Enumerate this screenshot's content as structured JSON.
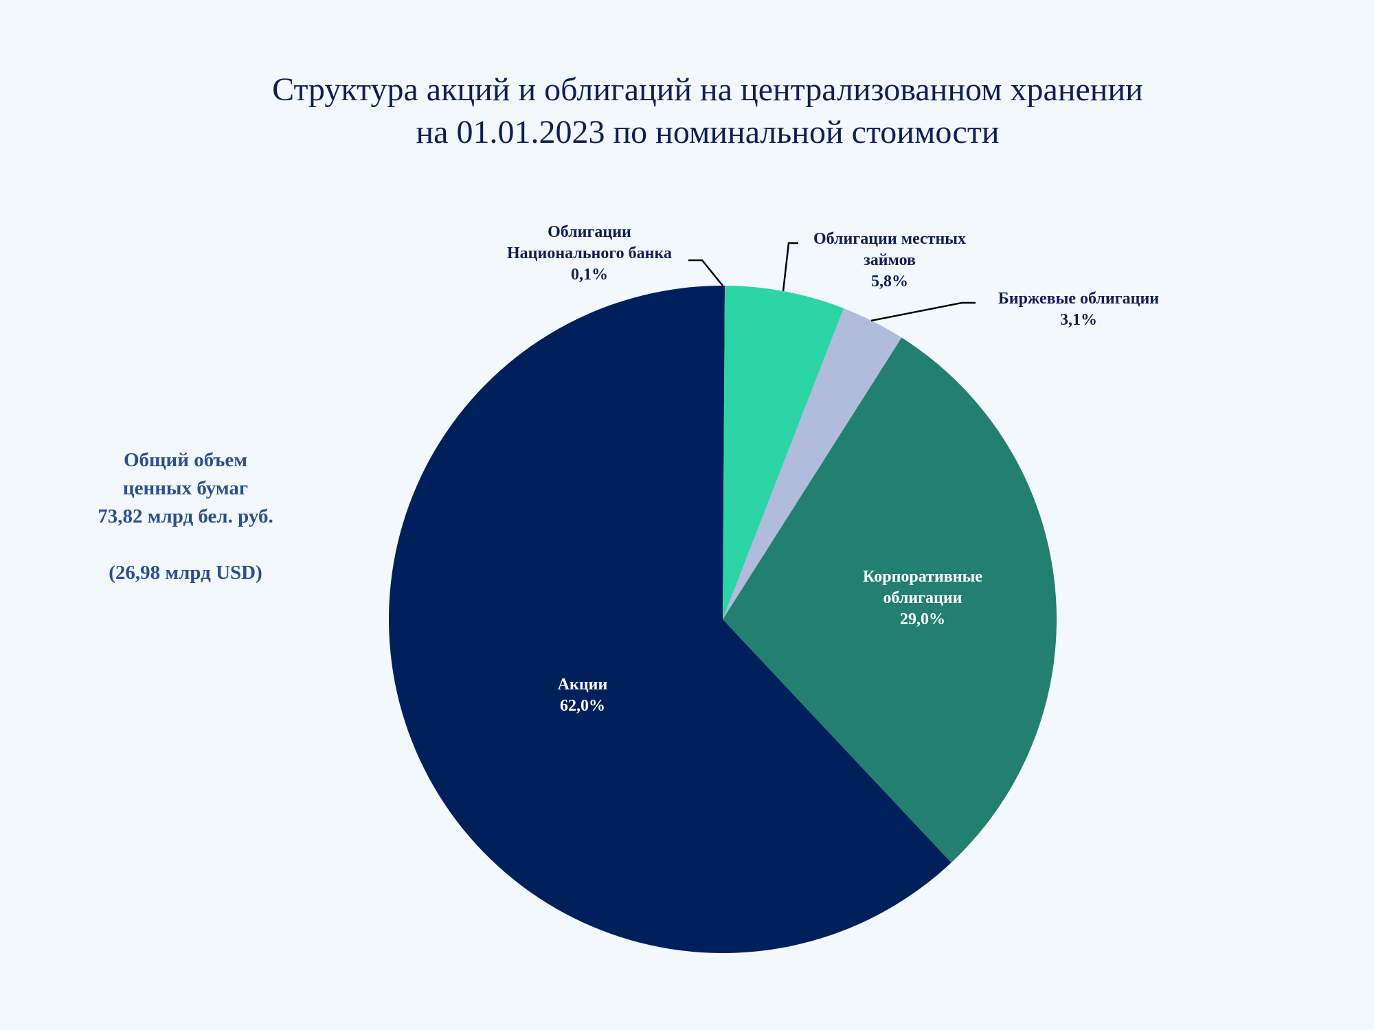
{
  "title": {
    "line1": "Структура акций и облигаций на централизованном хранении",
    "line2": "на 01.01.2023 по номинальной стоимости"
  },
  "summary": {
    "line1": "Общий объем",
    "line2": "ценных бумаг",
    "line3": "73,82  млрд бел. руб.",
    "line4": "(26,98  млрд USD)"
  },
  "chart_data": {
    "type": "pie",
    "unit": "%",
    "start": "12 o'clock, clockwise",
    "slices": [
      {
        "lines": [
          "Облигации",
          "Национального банка"
        ],
        "value_label": "0,1%",
        "value": 0.1,
        "color": "#0d1f5a"
      },
      {
        "lines": [
          "Облигации местных",
          "займов"
        ],
        "value_label": "5,8%",
        "value": 5.8,
        "color": "#2dd4a6"
      },
      {
        "lines": [
          "Биржевые облигации"
        ],
        "value_label": "3,1%",
        "value": 3.1,
        "color": "#b1bbdb"
      },
      {
        "lines": [
          "Корпоративные",
          "облигации"
        ],
        "value_label": "29,0%",
        "value": 29.0,
        "color": "#238071"
      },
      {
        "lines": [
          "Акции"
        ],
        "value_label": "62,0%",
        "value": 62.0,
        "color": "#00205c"
      }
    ]
  }
}
